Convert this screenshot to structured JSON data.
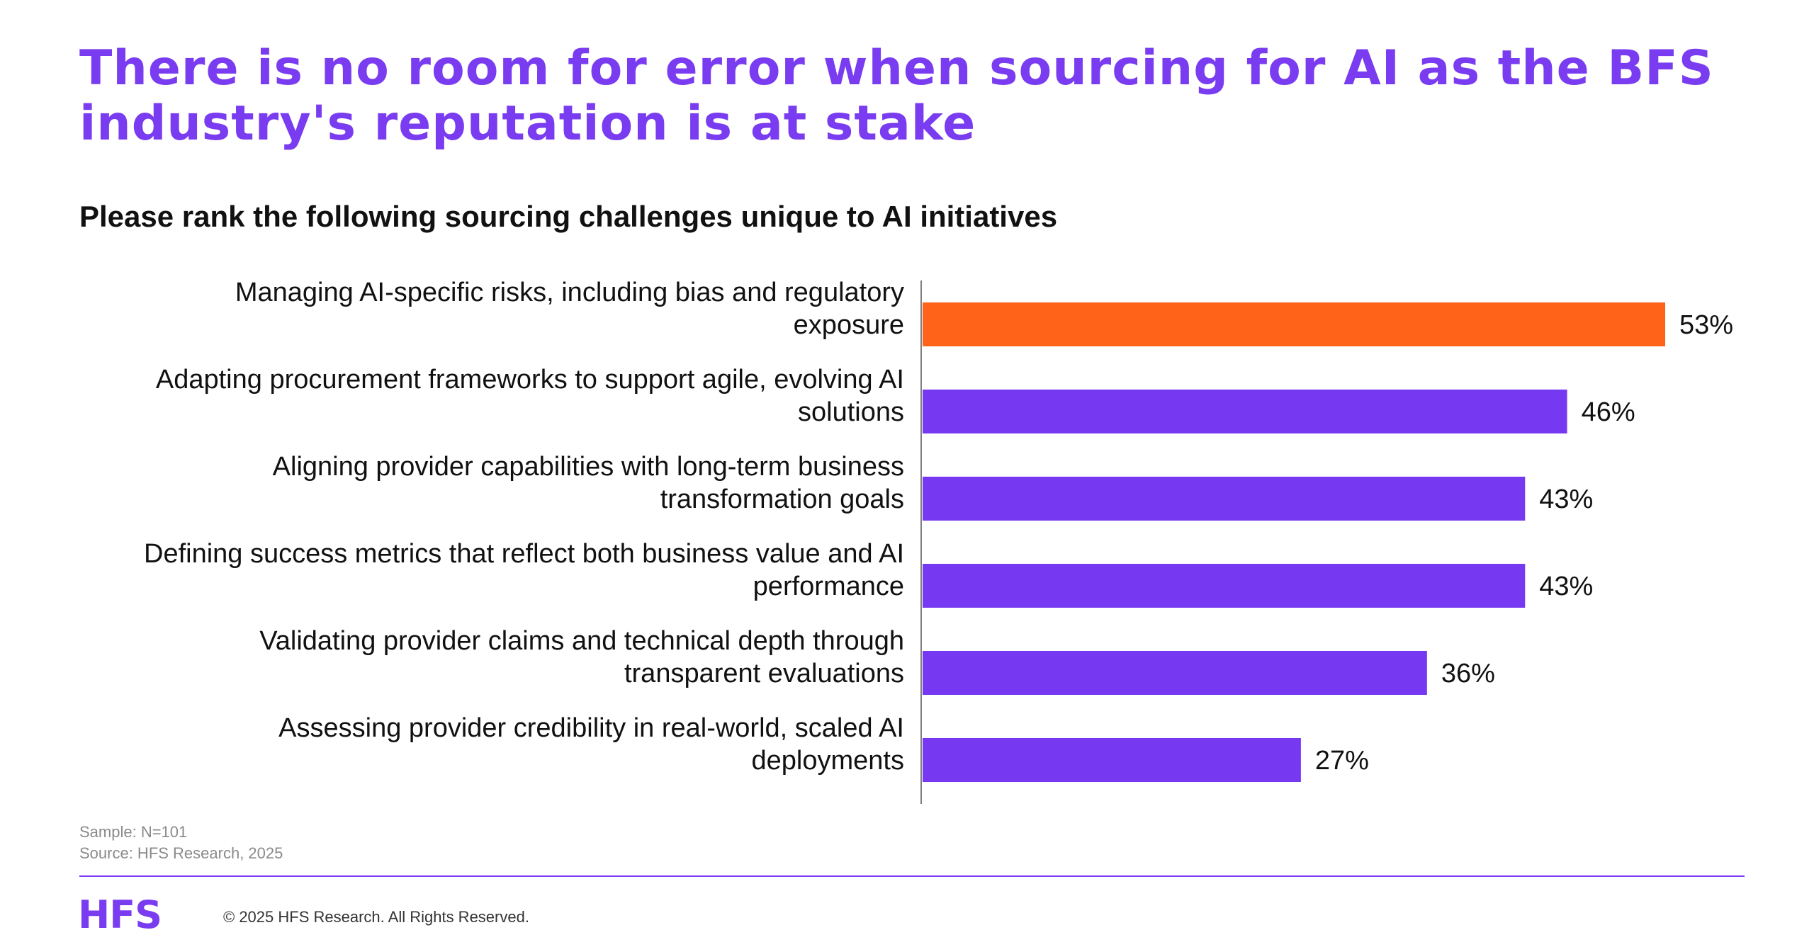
{
  "header": {
    "title": "There is no room for error when sourcing for AI as the BFS industry's reputation is at stake"
  },
  "chart_data": {
    "type": "bar",
    "orientation": "horizontal",
    "title": "Please rank the following sourcing challenges unique to AI initiatives",
    "categories": [
      [
        "Managing AI-specific risks, including bias and regulatory",
        "exposure"
      ],
      [
        "Adapting procurement frameworks to support agile, evolving AI",
        "solutions"
      ],
      [
        "Aligning provider capabilities with long-term business",
        "transformation goals"
      ],
      [
        "Defining success metrics that reflect both business value and AI",
        "performance"
      ],
      [
        "Validating provider claims and technical depth through",
        "transparent evaluations"
      ],
      [
        "Assessing provider credibility in real-world, scaled AI",
        "deployments"
      ]
    ],
    "values": [
      53,
      46,
      43,
      43,
      36,
      27
    ],
    "value_labels": [
      "53%",
      "46%",
      "43%",
      "43%",
      "36%",
      "27%"
    ],
    "colors": [
      "#ff6319",
      "#7638f0",
      "#7638f0",
      "#7638f0",
      "#7638f0",
      "#7638f0"
    ],
    "xlim": [
      0,
      55
    ],
    "grid": false,
    "legend": "none"
  },
  "footer": {
    "sample": "Sample: N=101",
    "source": "Source: HFS Research, 2025",
    "logo": "HFS",
    "copyright": "© 2025 HFS Research. All Rights Reserved."
  },
  "colors": {
    "accent": "#7a3cf0",
    "highlight": "#ff6319"
  }
}
